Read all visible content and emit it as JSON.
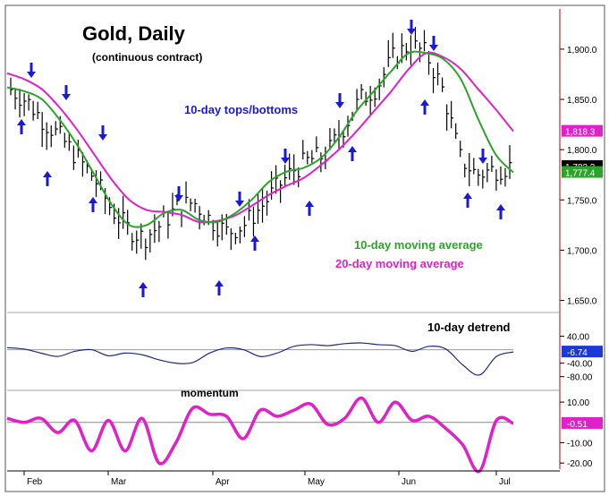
{
  "chart_data": [
    {
      "type": "line",
      "title": "Gold, Daily",
      "subtitle": "(continuous contract)",
      "annotations": {
        "turns": "10-day tops/bottoms",
        "ma10": "10-day moving average",
        "ma20": "20-day moving average"
      },
      "x_ticks": [
        "Feb",
        "Mar",
        "Apr",
        "May",
        "Jun",
        "Jul"
      ],
      "y_ticks": [
        "1,900.0",
        "1,850.0",
        "1,800.0",
        "1,750.0",
        "1,700.0",
        "1,650.0"
      ],
      "ylim": [
        1630,
        1940
      ],
      "price_tags": [
        "1,818.3",
        "1,783.3",
        "1,777.4"
      ],
      "price_tag_values": [
        1818.3,
        1783.3,
        1777.4
      ],
      "colors": {
        "ma10": "#2aa52a",
        "ma20": "#e020c8",
        "arrows": "#1a1ad6",
        "price_tag": "#000000"
      },
      "bars_sample": [
        1860,
        1848,
        1828,
        1812,
        1792,
        1772,
        1742,
        1722,
        1712,
        1725,
        1742,
        1748,
        1730,
        1718,
        1725,
        1742,
        1762,
        1780,
        1790,
        1795,
        1822,
        1850,
        1862,
        1892,
        1905,
        1895,
        1858,
        1792,
        1775,
        1780,
        1783.3
      ],
      "series": [
        {
          "name": "10-day moving average",
          "values": [
            1862,
            1858,
            1850,
            1830,
            1805,
            1775,
            1745,
            1725,
            1725,
            1737,
            1740,
            1730,
            1728,
            1736,
            1750,
            1768,
            1778,
            1782,
            1792,
            1812,
            1838,
            1858,
            1878,
            1896,
            1896,
            1890,
            1870,
            1830,
            1795,
            1777.4
          ]
        },
        {
          "name": "20-day moving average",
          "values": [
            1876,
            1870,
            1860,
            1842,
            1820,
            1795,
            1770,
            1750,
            1740,
            1738,
            1735,
            1728,
            1729,
            1734,
            1744,
            1755,
            1764,
            1772,
            1785,
            1800,
            1818,
            1838,
            1858,
            1880,
            1896,
            1892,
            1880,
            1860,
            1840,
            1818.3
          ]
        }
      ]
    },
    {
      "type": "line",
      "title": "10-day detrend",
      "y_ticks": [
        "40.00",
        "-40.00",
        "-80.00"
      ],
      "ylim": [
        -110,
        60
      ],
      "last_value": "-6.74",
      "values": [
        6,
        2,
        -10,
        -20,
        -5,
        0,
        -18,
        -10,
        -15,
        -30,
        -40,
        -38,
        -10,
        5,
        0,
        -20,
        -10,
        10,
        15,
        12,
        18,
        20,
        15,
        12,
        -5,
        10,
        2,
        -45,
        -75,
        -20,
        -6.74
      ]
    },
    {
      "type": "line",
      "title": "momentum",
      "y_ticks": [
        "10.00",
        "-10.00",
        "-20.00"
      ],
      "ylim": [
        -23,
        14
      ],
      "last_value": "-0.51",
      "values": [
        2,
        0,
        2,
        -5,
        1,
        -14,
        1,
        -14,
        2,
        -20,
        -10,
        7,
        4,
        3,
        -8,
        6,
        3,
        6,
        9,
        -1,
        2,
        12,
        0,
        10,
        1,
        3,
        -3,
        -11,
        -24,
        1,
        -0.51
      ]
    }
  ]
}
